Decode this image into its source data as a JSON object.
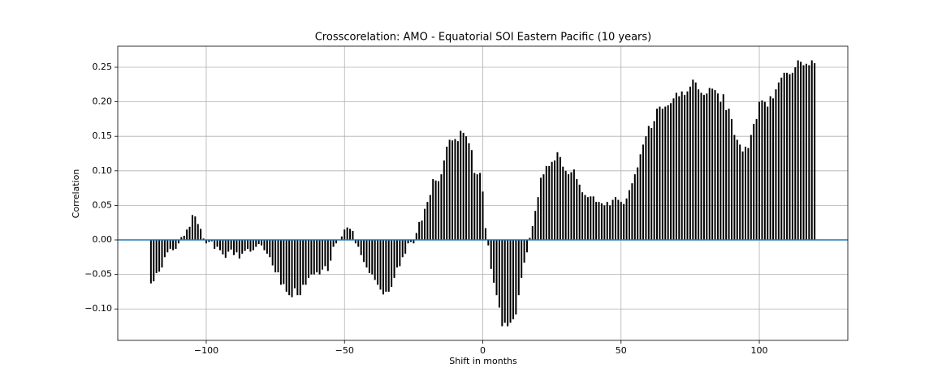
{
  "chart_data": {
    "type": "bar",
    "title": "Crosscorelation: AMO - Equatorial SOI Eastern Pacific (10 years)",
    "xlabel": "Shift in months",
    "ylabel": "Correlation",
    "color": "#000000",
    "grid": true,
    "axhline": {
      "y": 0,
      "color": "#1f77b4"
    },
    "xlim": [
      -132,
      132
    ],
    "ylim": [
      -0.1455,
      0.2805
    ],
    "xticks": [
      {
        "value": -100,
        "label": "−100"
      },
      {
        "value": -50,
        "label": "−50"
      },
      0,
      50,
      100
    ],
    "yticks": [
      {
        "value": -0.1,
        "label": "−0.10"
      },
      {
        "value": -0.05,
        "label": "−0.05"
      },
      {
        "value": 0,
        "label": "0.00"
      },
      {
        "value": 0.05,
        "label": "0.05"
      },
      {
        "value": 0.1,
        "label": "0.10"
      },
      {
        "value": 0.15,
        "label": "0.15"
      },
      {
        "value": 0.2,
        "label": "0.20"
      },
      {
        "value": 0.25,
        "label": "0.25"
      }
    ],
    "x": [
      -120,
      -119,
      -118,
      -117,
      -116,
      -115,
      -114,
      -113,
      -112,
      -111,
      -110,
      -109,
      -108,
      -107,
      -106,
      -105,
      -104,
      -103,
      -102,
      -101,
      -100,
      -99,
      -98,
      -97,
      -96,
      -95,
      -94,
      -93,
      -92,
      -91,
      -90,
      -89,
      -88,
      -87,
      -86,
      -85,
      -84,
      -83,
      -82,
      -81,
      -80,
      -79,
      -78,
      -77,
      -76,
      -75,
      -74,
      -73,
      -72,
      -71,
      -70,
      -69,
      -68,
      -67,
      -66,
      -65,
      -64,
      -63,
      -62,
      -61,
      -60,
      -59,
      -58,
      -57,
      -56,
      -55,
      -54,
      -53,
      -52,
      -51,
      -50,
      -49,
      -48,
      -47,
      -46,
      -45,
      -44,
      -43,
      -42,
      -41,
      -40,
      -39,
      -38,
      -37,
      -36,
      -35,
      -34,
      -33,
      -32,
      -31,
      -30,
      -29,
      -28,
      -27,
      -26,
      -25,
      -24,
      -23,
      -22,
      -21,
      -20,
      -19,
      -18,
      -17,
      -16,
      -15,
      -14,
      -13,
      -12,
      -11,
      -10,
      -9,
      -8,
      -7,
      -6,
      -5,
      -4,
      -3,
      -2,
      -1,
      0,
      1,
      2,
      3,
      4,
      5,
      6,
      7,
      8,
      9,
      10,
      11,
      12,
      13,
      14,
      15,
      16,
      17,
      18,
      19,
      20,
      21,
      22,
      23,
      24,
      25,
      26,
      27,
      28,
      29,
      30,
      31,
      32,
      33,
      34,
      35,
      36,
      37,
      38,
      39,
      40,
      41,
      42,
      43,
      44,
      45,
      46,
      47,
      48,
      49,
      50,
      51,
      52,
      53,
      54,
      55,
      56,
      57,
      58,
      59,
      60,
      61,
      62,
      63,
      64,
      65,
      66,
      67,
      68,
      69,
      70,
      71,
      72,
      73,
      74,
      75,
      76,
      77,
      78,
      79,
      80,
      81,
      82,
      83,
      84,
      85,
      86,
      87,
      88,
      89,
      90,
      91,
      92,
      93,
      94,
      95,
      96,
      97,
      98,
      99,
      100,
      101,
      102,
      103,
      104,
      105,
      106,
      107,
      108,
      109,
      110,
      111,
      112,
      113,
      114,
      115,
      116,
      117,
      118,
      119,
      120
    ],
    "values": [
      -0.063,
      -0.06,
      -0.048,
      -0.046,
      -0.04,
      -0.025,
      -0.018,
      -0.013,
      -0.015,
      -0.013,
      -0.005,
      0.004,
      0.006,
      0.015,
      0.019,
      0.036,
      0.034,
      0.023,
      0.016,
      0.002,
      -0.005,
      -0.003,
      -0.002,
      -0.013,
      -0.01,
      -0.015,
      -0.021,
      -0.026,
      -0.017,
      -0.014,
      -0.022,
      -0.018,
      -0.027,
      -0.02,
      -0.016,
      -0.013,
      -0.017,
      -0.015,
      -0.01,
      -0.006,
      -0.008,
      -0.015,
      -0.02,
      -0.025,
      -0.037,
      -0.047,
      -0.047,
      -0.065,
      -0.064,
      -0.075,
      -0.08,
      -0.083,
      -0.07,
      -0.08,
      -0.08,
      -0.065,
      -0.065,
      -0.055,
      -0.05,
      -0.05,
      -0.047,
      -0.05,
      -0.043,
      -0.038,
      -0.045,
      -0.03,
      -0.01,
      -0.005,
      0.0,
      0.005,
      0.015,
      0.018,
      0.016,
      0.013,
      -0.005,
      -0.01,
      -0.022,
      -0.032,
      -0.04,
      -0.048,
      -0.05,
      -0.058,
      -0.065,
      -0.072,
      -0.079,
      -0.075,
      -0.075,
      -0.068,
      -0.055,
      -0.04,
      -0.038,
      -0.025,
      -0.02,
      -0.005,
      -0.003,
      -0.005,
      0.01,
      0.026,
      0.028,
      0.045,
      0.055,
      0.065,
      0.088,
      0.086,
      0.085,
      0.095,
      0.115,
      0.135,
      0.145,
      0.144,
      0.146,
      0.143,
      0.158,
      0.155,
      0.15,
      0.14,
      0.13,
      0.097,
      0.095,
      0.097,
      0.07,
      0.017,
      -0.008,
      -0.042,
      -0.062,
      -0.08,
      -0.098,
      -0.125,
      -0.12,
      -0.125,
      -0.12,
      -0.115,
      -0.108,
      -0.08,
      -0.055,
      -0.033,
      -0.018,
      0.003,
      0.02,
      0.042,
      0.062,
      0.09,
      0.095,
      0.107,
      0.107,
      0.113,
      0.115,
      0.127,
      0.12,
      0.106,
      0.1,
      0.095,
      0.098,
      0.102,
      0.088,
      0.08,
      0.069,
      0.065,
      0.062,
      0.063,
      0.063,
      0.055,
      0.055,
      0.053,
      0.05,
      0.055,
      0.05,
      0.058,
      0.062,
      0.058,
      0.055,
      0.052,
      0.06,
      0.072,
      0.082,
      0.095,
      0.105,
      0.124,
      0.138,
      0.15,
      0.165,
      0.162,
      0.172,
      0.19,
      0.193,
      0.19,
      0.193,
      0.195,
      0.198,
      0.205,
      0.213,
      0.208,
      0.215,
      0.21,
      0.215,
      0.222,
      0.232,
      0.228,
      0.218,
      0.213,
      0.21,
      0.212,
      0.22,
      0.219,
      0.217,
      0.212,
      0.2,
      0.211,
      0.188,
      0.19,
      0.175,
      0.152,
      0.145,
      0.138,
      0.128,
      0.135,
      0.133,
      0.152,
      0.168,
      0.175,
      0.2,
      0.202,
      0.2,
      0.193,
      0.208,
      0.205,
      0.218,
      0.228,
      0.235,
      0.242,
      0.242,
      0.24,
      0.242,
      0.25,
      0.26,
      0.258,
      0.253,
      0.255,
      0.253,
      0.26,
      0.256
    ]
  }
}
